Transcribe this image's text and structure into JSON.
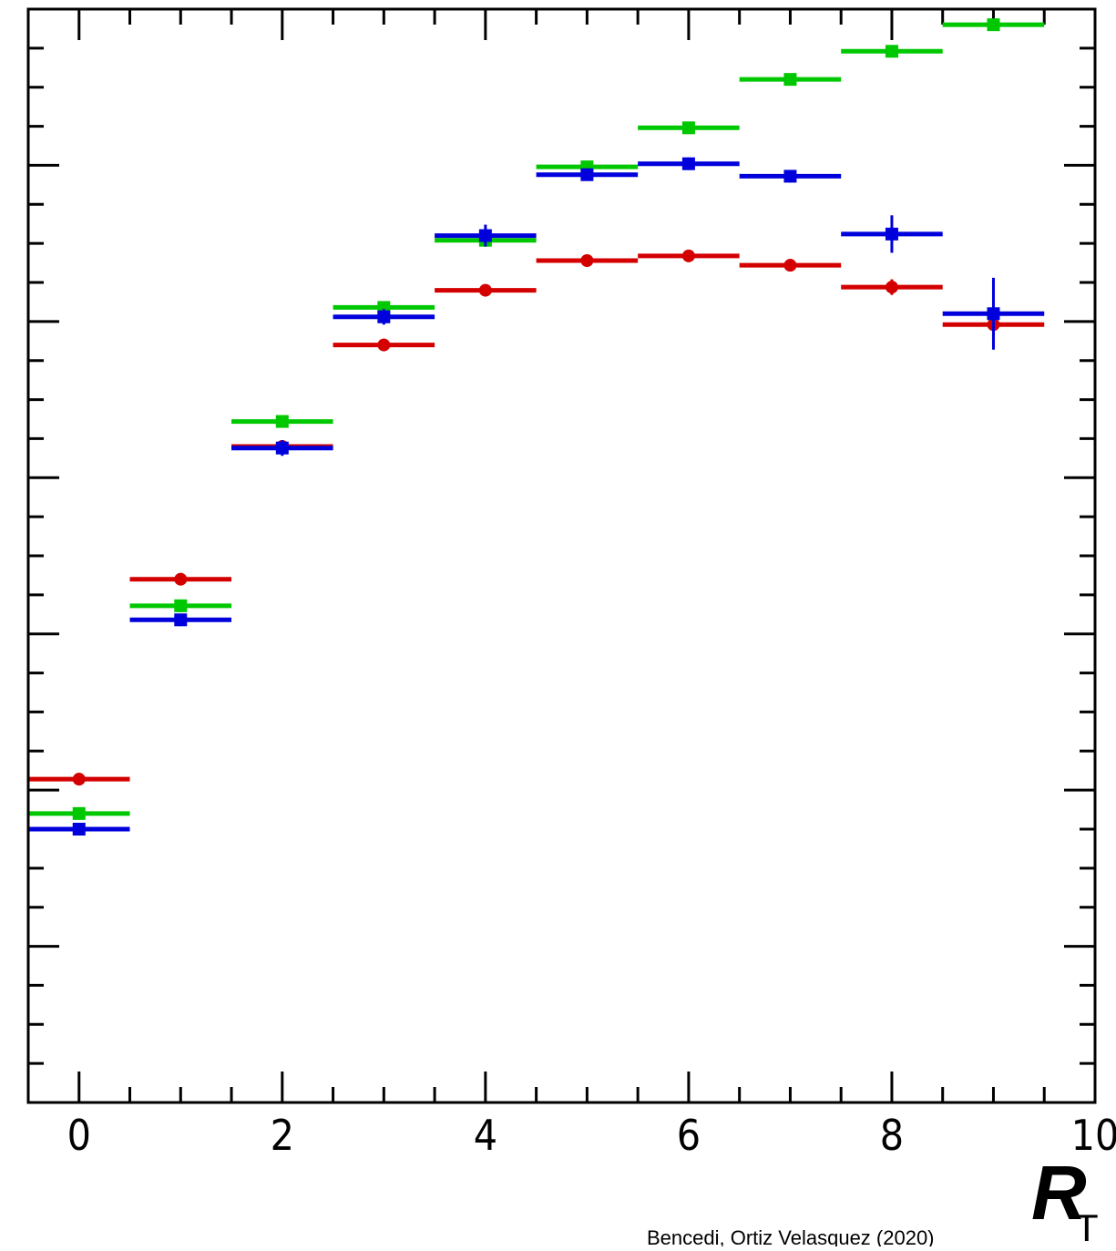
{
  "chart_data": {
    "type": "scatter",
    "xlabel": "R",
    "xlabel_subscript": "T",
    "xlim": [
      -0.5,
      10
    ],
    "ylim": [
      0,
      7
    ],
    "x_ticks": [
      "0",
      "2",
      "4",
      "6",
      "8",
      "10"
    ],
    "credit": "Bencedi, Ortiz Velasquez (2020)",
    "series": [
      {
        "color": "#d40000",
        "marker": "circle",
        "points": [
          {
            "x": 0,
            "y": 2.07,
            "err": 0.04
          },
          {
            "x": 1,
            "y": 3.35,
            "err": 0.04
          },
          {
            "x": 2,
            "y": 4.2,
            "err": 0.03
          },
          {
            "x": 3,
            "y": 4.85,
            "err": 0.04
          },
          {
            "x": 4,
            "y": 5.2,
            "err": 0.03
          },
          {
            "x": 5,
            "y": 5.39,
            "err": 0.03
          },
          {
            "x": 6,
            "y": 5.42,
            "err": 0.04
          },
          {
            "x": 7,
            "y": 5.36,
            "err": 0.04
          },
          {
            "x": 8,
            "y": 5.22,
            "err": 0.05
          },
          {
            "x": 9,
            "y": 4.98,
            "err": 0.08
          }
        ]
      },
      {
        "color": "#00c800",
        "marker": "square",
        "points": [
          {
            "x": 0,
            "y": 1.85,
            "err": 0.04
          },
          {
            "x": 1,
            "y": 3.18,
            "err": 0.04
          },
          {
            "x": 2,
            "y": 4.36,
            "err": 0.04
          },
          {
            "x": 3,
            "y": 5.09,
            "err": 0.04
          },
          {
            "x": 4,
            "y": 5.52,
            "err": 0.04
          },
          {
            "x": 5,
            "y": 5.99,
            "err": 0.03
          },
          {
            "x": 6,
            "y": 6.24,
            "err": 0.03
          },
          {
            "x": 7,
            "y": 6.55,
            "err": 0.03
          },
          {
            "x": 8,
            "y": 6.73,
            "err": 0.03
          },
          {
            "x": 9,
            "y": 6.9,
            "err": 0.03
          }
        ]
      },
      {
        "color": "#0000dc",
        "marker": "square",
        "points": [
          {
            "x": 0,
            "y": 1.75,
            "err": 0.04
          },
          {
            "x": 1,
            "y": 3.09,
            "err": 0.04
          },
          {
            "x": 2,
            "y": 4.19,
            "err": 0.05
          },
          {
            "x": 3,
            "y": 5.03,
            "err": 0.05
          },
          {
            "x": 4,
            "y": 5.55,
            "err": 0.07
          },
          {
            "x": 5,
            "y": 5.94,
            "err": 0.04
          },
          {
            "x": 6,
            "y": 6.01,
            "err": 0.04
          },
          {
            "x": 7,
            "y": 5.93,
            "err": 0.04
          },
          {
            "x": 8,
            "y": 5.56,
            "err": 0.12
          },
          {
            "x": 9,
            "y": 5.05,
            "err": 0.23
          }
        ]
      }
    ]
  }
}
